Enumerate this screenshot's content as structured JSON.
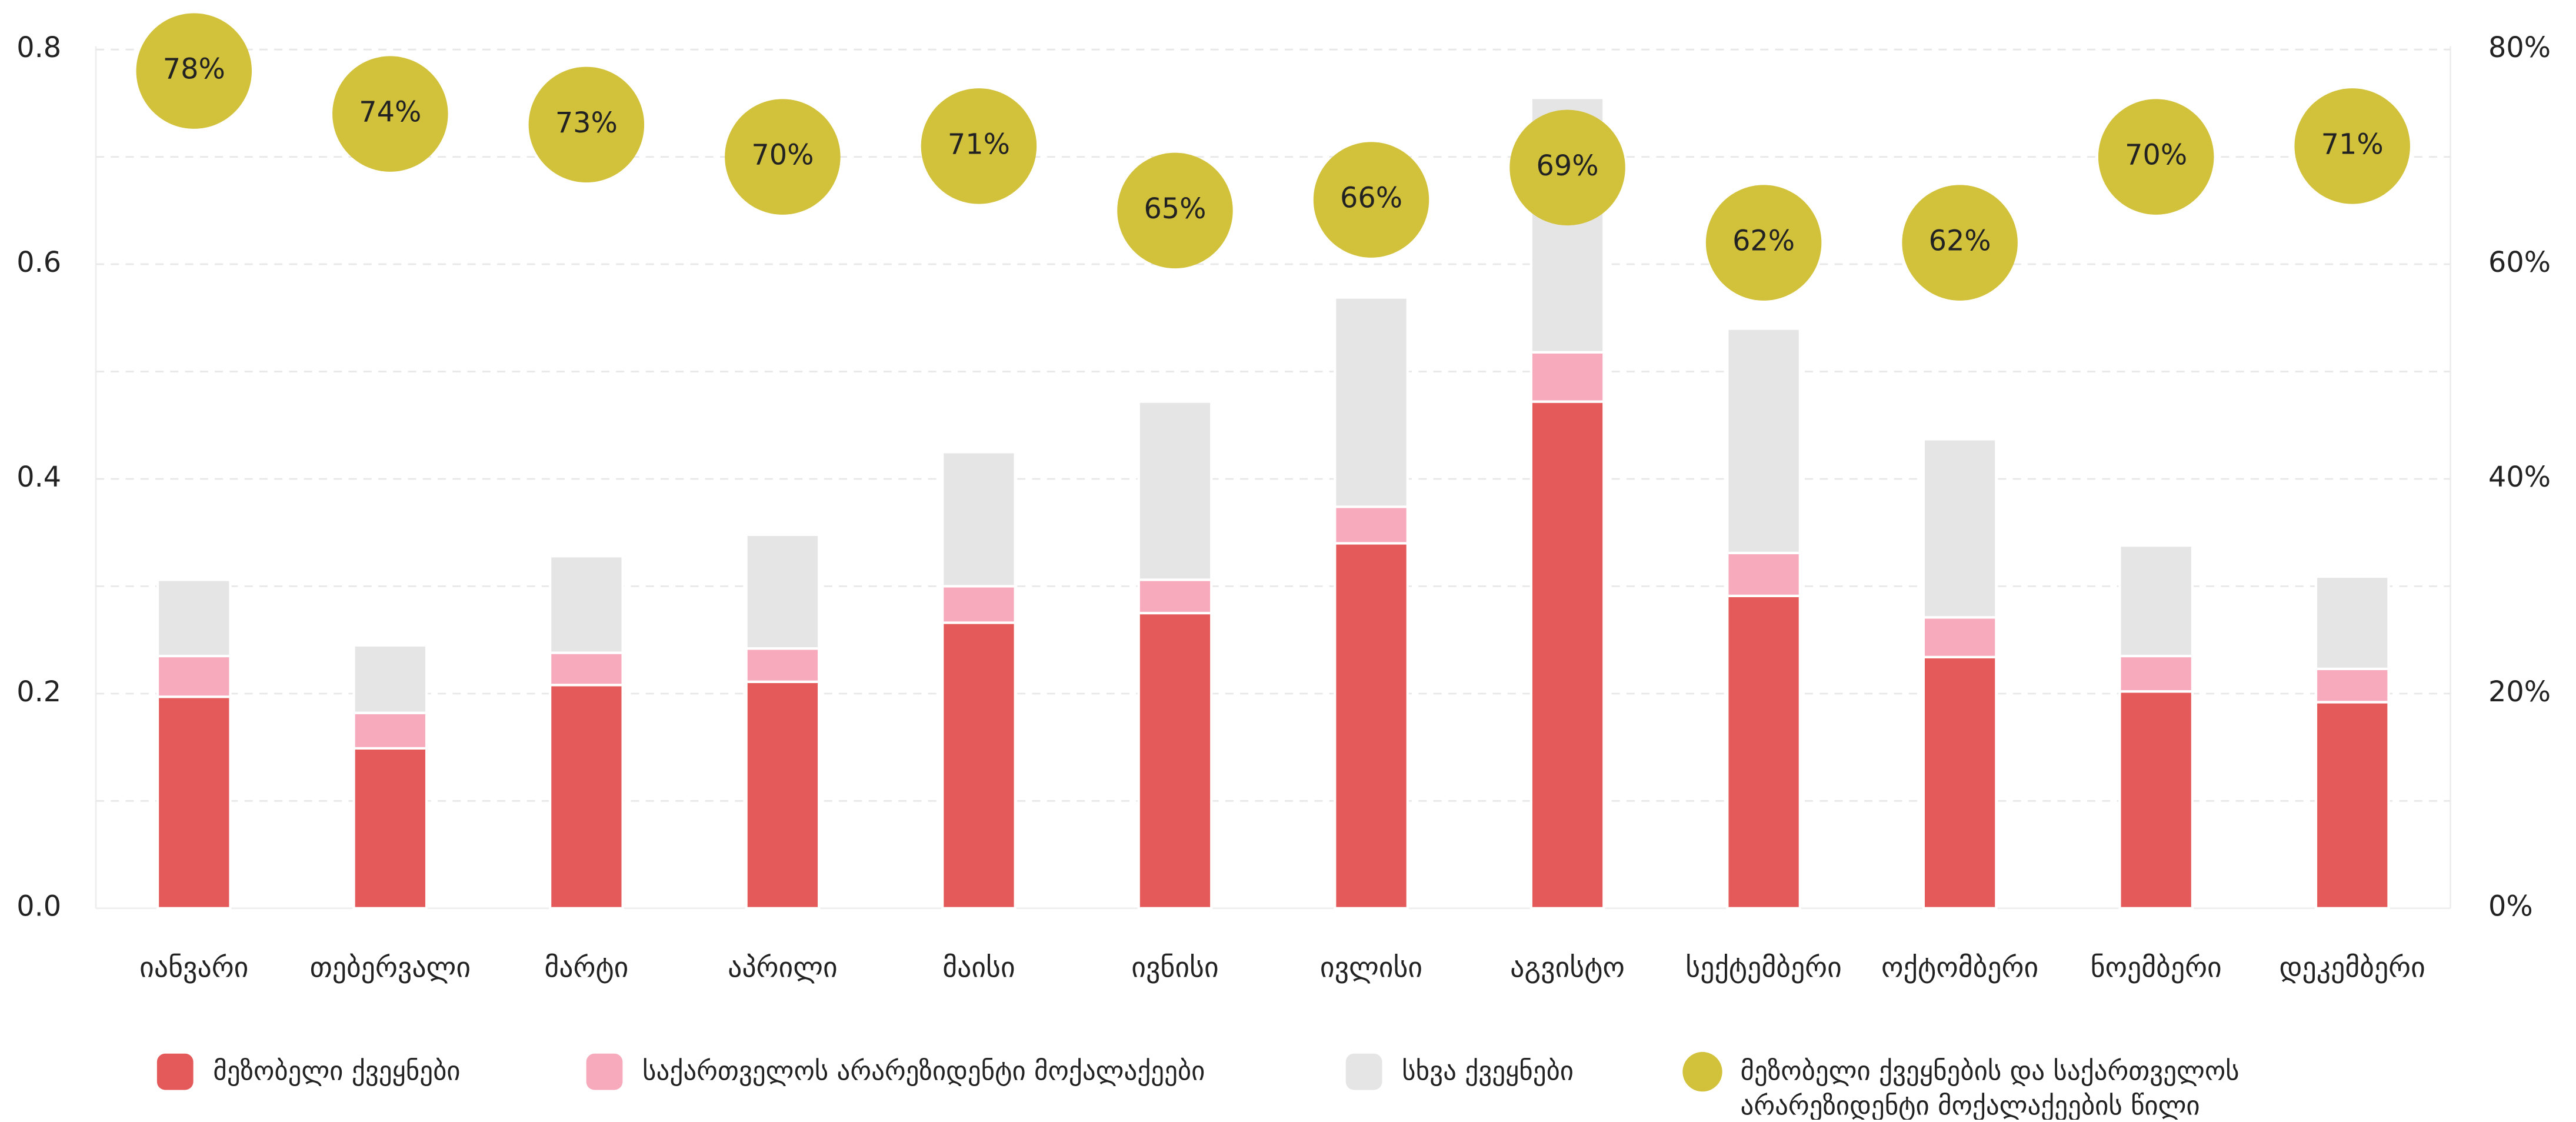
{
  "chart_data": {
    "type": "bar",
    "stacked": true,
    "categories": [
      "იანვარი",
      "თებერვალი",
      "მარტი",
      "აპრილი",
      "მაისი",
      "ივნისი",
      "ივლისი",
      "აგვისტო",
      "სექტემბერი",
      "ოქტომბერი",
      "ნოემბერი",
      "დეკემბერი"
    ],
    "series": [
      {
        "name": "მეზობელი ქვეყნები",
        "color": "#e45a5a",
        "values": [
          0.197,
          0.149,
          0.208,
          0.211,
          0.266,
          0.275,
          0.34,
          0.472,
          0.291,
          0.234,
          0.202,
          0.192
        ]
      },
      {
        "name": "საქართველოს არარეზიდენტი მოქალაქეები",
        "color": "#f7aabb",
        "values": [
          0.038,
          0.033,
          0.03,
          0.031,
          0.034,
          0.031,
          0.034,
          0.046,
          0.04,
          0.037,
          0.033,
          0.031
        ]
      },
      {
        "name": "სხვა ქვეყნები",
        "color": "#e5e5e5",
        "values": [
          0.071,
          0.063,
          0.09,
          0.106,
          0.125,
          0.166,
          0.195,
          0.237,
          0.209,
          0.166,
          0.103,
          0.086
        ]
      },
      {
        "name": "მეზობელი ქვეყნების და საქართველოს არარეზიდენტი მოქალაქეების წილი",
        "color": "#d2c13a",
        "axis": "y2",
        "type": "circle",
        "values": [
          78,
          74,
          73,
          70,
          71,
          65,
          66,
          69,
          62,
          62,
          70,
          71
        ],
        "value_labels": [
          "78%",
          "74%",
          "73%",
          "70%",
          "71%",
          "65%",
          "66%",
          "69%",
          "62%",
          "62%",
          "70%",
          "71%"
        ]
      }
    ],
    "ylim": [
      0,
      0.8
    ],
    "yticks": [
      {
        "value": 0,
        "label": "0.0"
      },
      0.2,
      0.4,
      0.6,
      0.8
    ],
    "minor_yticks": [
      0.1,
      0.3,
      0.5,
      0.7
    ],
    "y2lim": [
      0,
      80
    ],
    "y2ticks": [
      {
        "value": 0,
        "label": "0%"
      },
      {
        "value": 20,
        "label": "20%"
      },
      {
        "value": 40,
        "label": "40%"
      },
      {
        "value": 60,
        "label": "60%"
      },
      {
        "value": 80,
        "label": "80%"
      }
    ],
    "grid": true,
    "legend": "bottom"
  }
}
